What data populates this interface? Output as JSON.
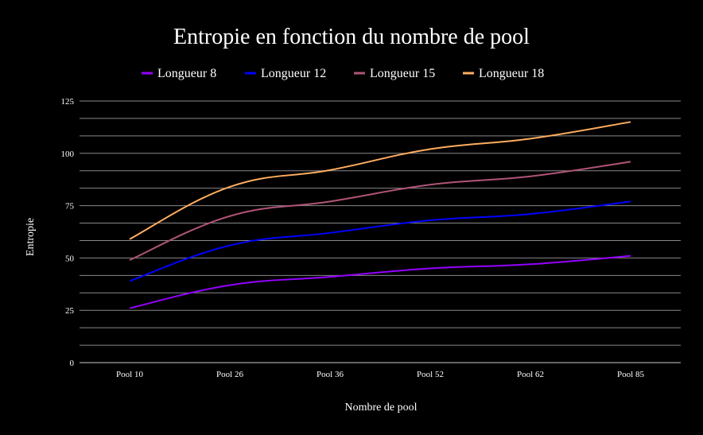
{
  "chart_data": {
    "type": "line",
    "title": "Entropie en fonction du nombre de pool",
    "xlabel": "Nombre de pool",
    "ylabel": "Entropie",
    "categories": [
      "Pool 10",
      "Pool 26",
      "Pool 36",
      "Pool 52",
      "Pool 62",
      "Pool 85"
    ],
    "ylim": [
      0,
      125
    ],
    "yticks": [
      0,
      25,
      50,
      75,
      100,
      125
    ],
    "grid": true,
    "legend": "top",
    "smooth": true,
    "background": "#000000",
    "series": [
      {
        "name": "Longueur 8",
        "color": "#9400ff",
        "values": [
          26,
          37,
          41,
          45,
          47,
          51
        ]
      },
      {
        "name": "Longueur 12",
        "color": "#0000ff",
        "values": [
          39,
          56,
          62,
          68,
          71,
          77
        ]
      },
      {
        "name": "Longueur 15",
        "color": "#b05478",
        "values": [
          49,
          70,
          77,
          85,
          89,
          96
        ]
      },
      {
        "name": "Longueur 18",
        "color": "#ffad60",
        "values": [
          59,
          84,
          92,
          102,
          107,
          115
        ]
      }
    ]
  }
}
